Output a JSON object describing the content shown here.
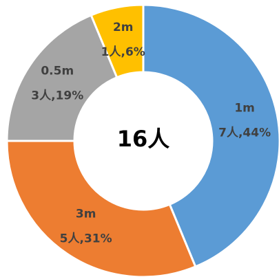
{
  "chart_data": {
    "type": "donut",
    "center_label": "16人",
    "categories": [
      "1m",
      "3m",
      "0.5m",
      "2m"
    ],
    "values": [
      7,
      5,
      3,
      1
    ],
    "value_labels": [
      "7人,44%",
      "5人,31%",
      "3人,19%",
      "1人,6%"
    ],
    "colors": [
      "#5b9bd5",
      "#ed7d31",
      "#a5a5a5",
      "#ffc000"
    ]
  }
}
